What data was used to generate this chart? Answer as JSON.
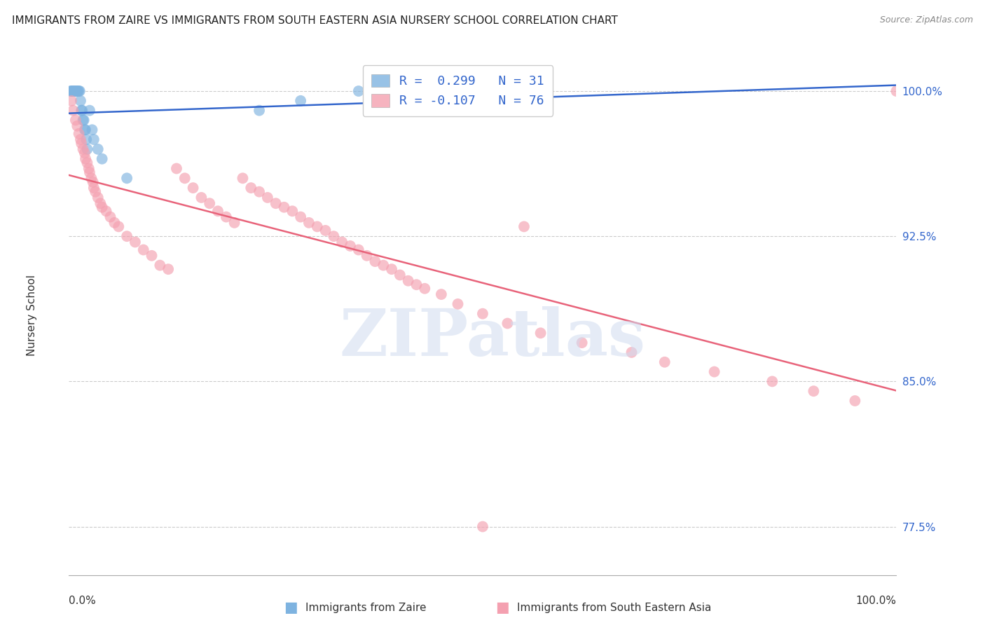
{
  "title": "IMMIGRANTS FROM ZAIRE VS IMMIGRANTS FROM SOUTH EASTERN ASIA NURSERY SCHOOL CORRELATION CHART",
  "source": "Source: ZipAtlas.com",
  "ylabel": "Nursery School",
  "yticks": [
    77.5,
    85.0,
    92.5,
    100.0
  ],
  "ytick_labels": [
    "77.5%",
    "85.0%",
    "92.5%",
    "100.0%"
  ],
  "legend_blue_r": "R =  0.299",
  "legend_blue_n": "N = 31",
  "legend_pink_r": "R = -0.107",
  "legend_pink_n": "N = 76",
  "legend_label_blue": "Immigrants from Zaire",
  "legend_label_pink": "Immigrants from South Eastern Asia",
  "blue_color": "#7EB3E0",
  "pink_color": "#F4A0B0",
  "trendline_blue_color": "#3366CC",
  "trendline_pink_color": "#E8637A",
  "blue_dots_x": [
    0.2,
    0.3,
    0.4,
    0.5,
    0.6,
    0.7,
    0.8,
    0.9,
    1.0,
    1.1,
    1.2,
    1.3,
    1.4,
    1.5,
    1.6,
    1.7,
    1.8,
    1.9,
    2.0,
    2.1,
    2.2,
    2.5,
    2.8,
    3.0,
    3.5,
    4.0,
    7.0,
    23.0,
    28.0,
    35.0,
    40.0
  ],
  "blue_dots_y": [
    100.0,
    100.0,
    100.0,
    100.0,
    100.0,
    100.0,
    100.0,
    100.0,
    100.0,
    100.0,
    100.0,
    100.0,
    99.5,
    99.0,
    99.0,
    98.5,
    98.5,
    98.0,
    98.0,
    97.5,
    97.0,
    99.0,
    98.0,
    97.5,
    97.0,
    96.5,
    95.5,
    99.0,
    99.5,
    100.0,
    100.0
  ],
  "pink_dots_x": [
    0.3,
    0.5,
    0.8,
    1.0,
    1.2,
    1.4,
    1.5,
    1.7,
    1.9,
    2.0,
    2.2,
    2.4,
    2.5,
    2.7,
    2.9,
    3.0,
    3.2,
    3.5,
    3.8,
    4.0,
    4.5,
    5.0,
    5.5,
    6.0,
    7.0,
    8.0,
    9.0,
    10.0,
    11.0,
    12.0,
    13.0,
    14.0,
    15.0,
    16.0,
    17.0,
    18.0,
    19.0,
    20.0,
    21.0,
    22.0,
    23.0,
    24.0,
    25.0,
    26.0,
    27.0,
    28.0,
    29.0,
    30.0,
    31.0,
    32.0,
    33.0,
    34.0,
    35.0,
    36.0,
    37.0,
    38.0,
    39.0,
    40.0,
    41.0,
    42.0,
    43.0,
    45.0,
    47.0,
    50.0,
    53.0,
    57.0,
    62.0,
    68.0,
    72.0,
    78.0,
    85.0,
    90.0,
    95.0,
    100.0,
    50.0,
    55.0
  ],
  "pink_dots_y": [
    99.5,
    99.0,
    98.5,
    98.2,
    97.8,
    97.5,
    97.3,
    97.0,
    96.8,
    96.5,
    96.3,
    96.0,
    95.8,
    95.5,
    95.3,
    95.0,
    94.8,
    94.5,
    94.2,
    94.0,
    93.8,
    93.5,
    93.2,
    93.0,
    92.5,
    92.2,
    91.8,
    91.5,
    91.0,
    90.8,
    96.0,
    95.5,
    95.0,
    94.5,
    94.2,
    93.8,
    93.5,
    93.2,
    95.5,
    95.0,
    94.8,
    94.5,
    94.2,
    94.0,
    93.8,
    93.5,
    93.2,
    93.0,
    92.8,
    92.5,
    92.2,
    92.0,
    91.8,
    91.5,
    91.2,
    91.0,
    90.8,
    90.5,
    90.2,
    90.0,
    89.8,
    89.5,
    89.0,
    88.5,
    88.0,
    87.5,
    87.0,
    86.5,
    86.0,
    85.5,
    85.0,
    84.5,
    84.0,
    100.0,
    77.5,
    93.0
  ]
}
